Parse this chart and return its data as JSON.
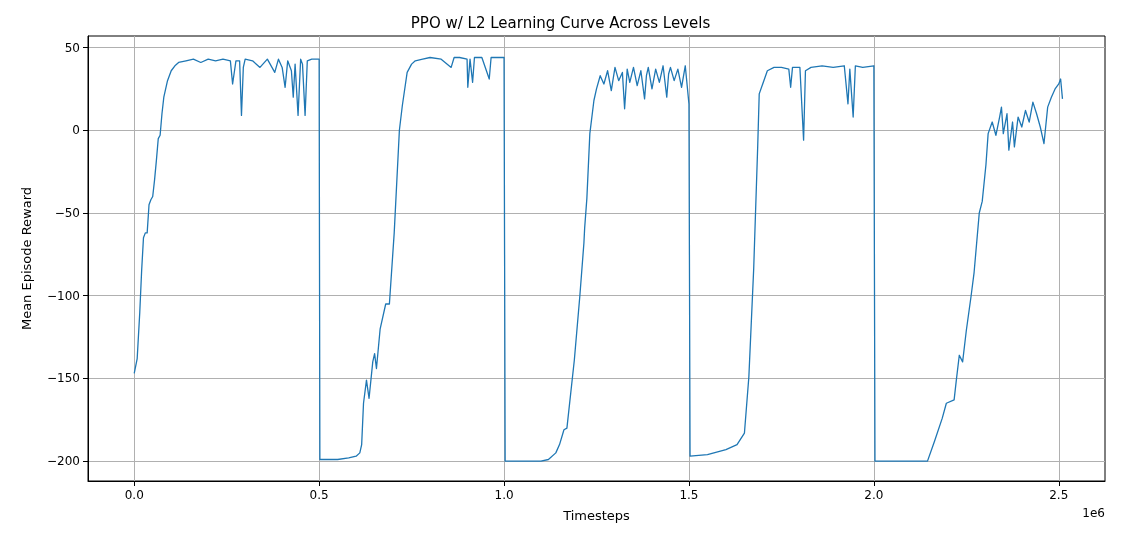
{
  "chart_data": {
    "type": "line",
    "title": "PPO w/ L2 Learning Curve Across Levels",
    "xlabel": "Timesteps",
    "ylabel": "Mean Episode Reward",
    "annotations": [
      "1e6"
    ],
    "grid": true,
    "marker": "none",
    "line_style": "solid",
    "xlim": [
      -0.125,
      2.625
    ],
    "ylim": [
      -212,
      57
    ],
    "xticks": [
      {
        "value": 0,
        "label": "0.0"
      },
      {
        "value": 0.5,
        "label": "0.5"
      },
      {
        "value": 1,
        "label": "1.0"
      },
      {
        "value": 1.5,
        "label": "1.5"
      },
      {
        "value": 2,
        "label": "2.0"
      },
      {
        "value": 2.5,
        "label": "2.5"
      }
    ],
    "yticks": [
      {
        "value": 50,
        "label": "50"
      },
      {
        "value": 0,
        "label": "0"
      },
      {
        "value": -50,
        "label": "−50"
      },
      {
        "value": -100,
        "label": "−100"
      },
      {
        "value": -150,
        "label": "−150"
      },
      {
        "value": -200,
        "label": "−200"
      }
    ],
    "series": [
      {
        "color": "#1f77b4",
        "x": [
          0,
          0.008,
          0.015,
          0.02,
          0.025,
          0.03,
          0.035,
          0.04,
          0.045,
          0.05,
          0.055,
          0.06,
          0.065,
          0.07,
          0.075,
          0.08,
          0.09,
          0.1,
          0.11,
          0.12,
          0.14,
          0.16,
          0.18,
          0.2,
          0.22,
          0.24,
          0.26,
          0.266,
          0.275,
          0.285,
          0.29,
          0.295,
          0.3,
          0.32,
          0.34,
          0.36,
          0.38,
          0.39,
          0.4,
          0.408,
          0.415,
          0.425,
          0.43,
          0.435,
          0.443,
          0.45,
          0.455,
          0.462,
          0.468,
          0.48,
          0.5,
          0.502,
          0.51,
          0.55,
          0.58,
          0.6,
          0.61,
          0.615,
          0.62,
          0.628,
          0.635,
          0.645,
          0.65,
          0.655,
          0.665,
          0.68,
          0.69,
          0.703,
          0.717,
          0.725,
          0.738,
          0.75,
          0.76,
          0.78,
          0.8,
          0.83,
          0.857,
          0.865,
          0.88,
          0.9,
          0.902,
          0.908,
          0.915,
          0.92,
          0.94,
          0.96,
          0.965,
          0.98,
          1.0,
          1.003,
          1.05,
          1.1,
          1.12,
          1.14,
          1.15,
          1.162,
          1.17,
          1.19,
          1.205,
          1.216,
          1.218,
          1.224,
          1.232,
          1.243,
          1.25,
          1.26,
          1.27,
          1.28,
          1.29,
          1.3,
          1.31,
          1.32,
          1.326,
          1.333,
          1.34,
          1.35,
          1.36,
          1.37,
          1.38,
          1.385,
          1.39,
          1.4,
          1.41,
          1.42,
          1.43,
          1.44,
          1.445,
          1.45,
          1.46,
          1.47,
          1.48,
          1.49,
          1.5,
          1.503,
          1.55,
          1.6,
          1.63,
          1.65,
          1.662,
          1.675,
          1.686,
          1.69,
          1.712,
          1.73,
          1.75,
          1.77,
          1.775,
          1.78,
          1.8,
          1.81,
          1.815,
          1.83,
          1.86,
          1.89,
          1.92,
          1.93,
          1.935,
          1.944,
          1.95,
          1.97,
          2.0,
          2.003,
          2.1,
          2.145,
          2.164,
          2.185,
          2.196,
          2.217,
          2.223,
          2.231,
          2.24,
          2.25,
          2.263,
          2.271,
          2.285,
          2.293,
          2.303,
          2.309,
          2.32,
          2.33,
          2.34,
          2.345,
          2.35,
          2.36,
          2.365,
          2.375,
          2.38,
          2.39,
          2.4,
          2.41,
          2.42,
          2.43,
          2.44,
          2.45,
          2.46,
          2.47,
          2.48,
          2.49,
          2.5,
          2.505,
          2.51
        ],
        "values": [
          -147,
          -138,
          -110,
          -85,
          -65,
          -62,
          -62,
          -45,
          -42,
          -40,
          -30,
          -18,
          -5,
          -3,
          10,
          20,
          30,
          36,
          39,
          41,
          42,
          43,
          41,
          43,
          42,
          43,
          42,
          28,
          42,
          42,
          9,
          38,
          43,
          42,
          38,
          43,
          35,
          43,
          38,
          26,
          42,
          36,
          20,
          40,
          9,
          43,
          40,
          9,
          42,
          43,
          43,
          -199,
          -199,
          -199,
          -198,
          -197,
          -195,
          -190,
          -165,
          -151,
          -162,
          -140,
          -135,
          -144,
          -120,
          -105,
          -105,
          -62,
          0,
          15,
          35,
          40,
          42,
          43,
          44,
          43,
          38,
          44,
          44,
          43,
          26,
          43,
          29,
          44,
          44,
          31,
          44,
          44,
          44,
          -200,
          -200,
          -200,
          -199,
          -195,
          -190,
          -181,
          -180,
          -139,
          -100,
          -68,
          -59,
          -41,
          -2,
          18,
          25,
          33,
          28,
          36,
          24,
          38,
          30,
          35,
          13,
          37,
          29,
          38,
          27,
          36,
          19,
          33,
          38,
          25,
          37,
          29,
          39,
          20,
          34,
          38,
          30,
          37,
          26,
          39,
          16,
          -197,
          -196,
          -193,
          -190,
          -183,
          -149,
          -84,
          -9,
          22,
          36,
          38,
          38,
          37,
          26,
          38,
          38,
          -6,
          36,
          38,
          39,
          38,
          39,
          16,
          37,
          8,
          39,
          38,
          39,
          -200,
          -200,
          -200,
          -188,
          -174,
          -165,
          -163,
          -151,
          -136,
          -140,
          -121,
          -100,
          -86,
          -50,
          -43,
          -21,
          -2,
          5,
          -3,
          8,
          14,
          -2,
          10,
          -12,
          5,
          -10,
          8,
          2,
          12,
          5,
          17,
          10,
          2,
          -8,
          14,
          20,
          25,
          28,
          31,
          19
        ]
      }
    ]
  }
}
